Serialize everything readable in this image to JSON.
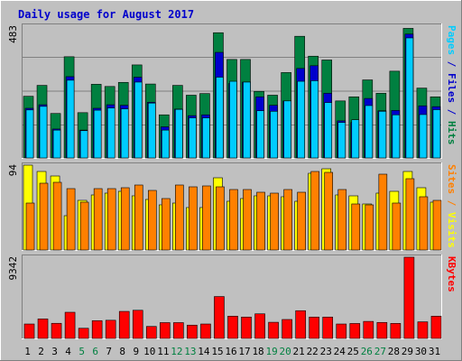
{
  "chart_data": {
    "type": "bar",
    "title": "Daily usage for August 2017",
    "categories": [
      "1",
      "2",
      "3",
      "4",
      "5",
      "6",
      "7",
      "8",
      "9",
      "10",
      "11",
      "12",
      "13",
      "14",
      "15",
      "16",
      "17",
      "18",
      "19",
      "20",
      "21",
      "22",
      "23",
      "24",
      "25",
      "26",
      "27",
      "28",
      "29",
      "30",
      "31"
    ],
    "weekend_days": [
      5,
      6,
      12,
      13,
      19,
      20,
      26,
      27
    ],
    "panels": [
      {
        "name": "hits",
        "ymax_label": "483",
        "ymax": 483,
        "side_label_parts": [
          "Pages",
          " / ",
          "Files",
          " / ",
          "Hits"
        ],
        "side_label_colors": [
          "#00ccff",
          "#0000cc",
          "#0000cc",
          "#0000cc",
          "#008040"
        ],
        "series": [
          {
            "name": "Hits",
            "color": "#008040",
            "values": [
              226,
              266,
              163,
              371,
              166,
              270,
              262,
              277,
              341,
              271,
              158,
              266,
              230,
              236,
              459,
              361,
              361,
              244,
              230,
              313,
              446,
              373,
              359,
              209,
              224,
              286,
              237,
              318,
              475,
              256,
              224
            ]
          },
          {
            "name": "Files",
            "color": "#0000cc",
            "values": [
              182,
              195,
              106,
              298,
              102,
              182,
              195,
              193,
              296,
              204,
              114,
              179,
              155,
              158,
              387,
              273,
              278,
              224,
              193,
              209,
              328,
              338,
              237,
              136,
              130,
              218,
              173,
              174,
              454,
              191,
              188
            ]
          },
          {
            "name": "Pages",
            "color": "#00ccff",
            "values": [
              176,
              189,
              102,
              285,
              100,
              175,
              183,
              180,
              278,
              201,
              102,
              178,
              147,
              147,
              296,
              281,
              278,
              173,
              171,
              209,
              281,
              283,
              203,
              130,
              140,
              192,
              171,
              158,
              440,
              159,
              177
            ]
          }
        ]
      },
      {
        "name": "visits",
        "ymax_label": "94",
        "ymax": 94,
        "side_label_parts": [
          "Sites",
          " / ",
          "Visits"
        ],
        "side_label_colors": [
          "#ff8000",
          "#ff8000",
          "#ffff00"
        ],
        "series": [
          {
            "name": "Visits",
            "color": "#ffff00",
            "values": [
              94,
              87,
              82,
              38,
              55,
              61,
              63,
              65,
              60,
              56,
              50,
              52,
              47,
              47,
              80,
              54,
              57,
              60,
              60,
              59,
              54,
              85,
              90,
              61,
              60,
              51,
              63,
              65,
              87,
              69,
              53
            ]
          },
          {
            "name": "Sites",
            "color": "#ff8000",
            "values": [
              52,
              74,
              75,
              68,
              53,
              68,
              68,
              69,
              72,
              66,
              57,
              72,
              70,
              71,
              70,
              67,
              67,
              64,
              63,
              67,
              64,
              87,
              86,
              67,
              51,
              50,
              84,
              52,
              79,
              59,
              55
            ]
          }
        ]
      },
      {
        "name": "kbytes",
        "ymax_label": "9342",
        "ymax": 9342,
        "side_label_parts": [
          "KBytes"
        ],
        "side_label_colors": [
          "#ff0000"
        ],
        "series": [
          {
            "name": "KBytes",
            "color": "#ff0000",
            "values": [
              1660,
              2240,
              1740,
              3010,
              1170,
              2040,
              2090,
              3110,
              3240,
              1380,
              1820,
              1820,
              1530,
              1660,
              4820,
              2560,
              2460,
              2830,
              1860,
              2180,
              3190,
              2460,
              2460,
              1660,
              1720,
              1960,
              1840,
              1730,
              9342,
              1910,
              2560
            ]
          }
        ]
      }
    ]
  }
}
